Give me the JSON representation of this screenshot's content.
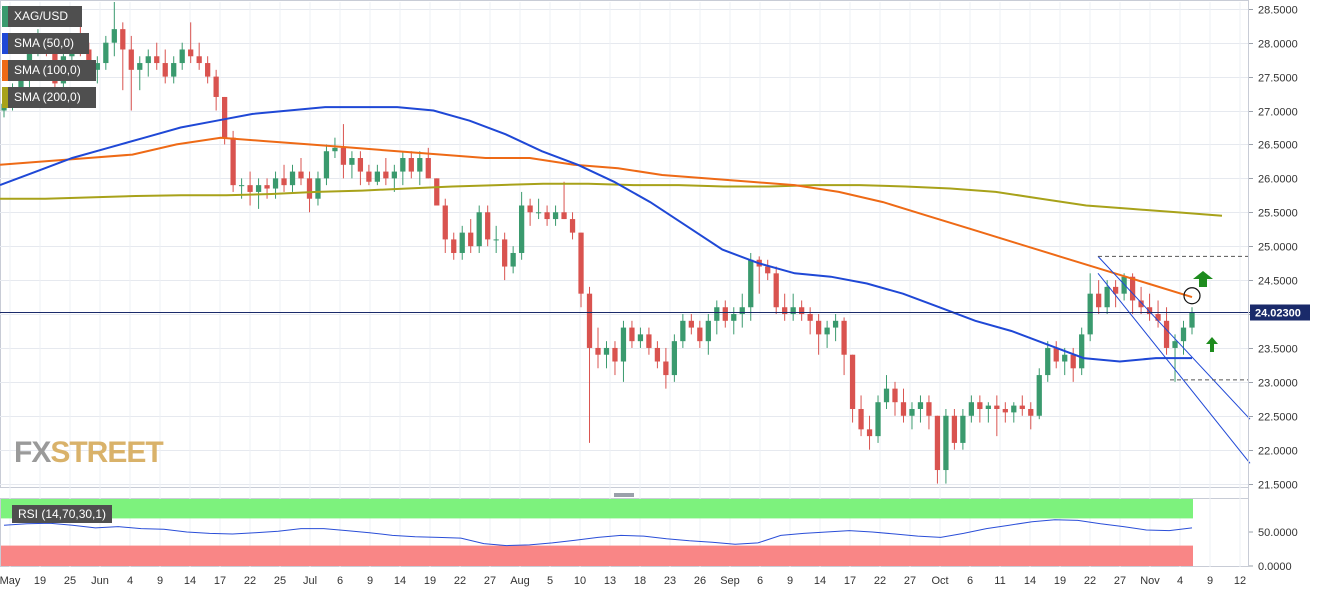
{
  "legend": {
    "symbol": "XAG/USD",
    "sma50": "SMA (50,0)",
    "sma100": "SMA (100,0)",
    "sma200": "SMA (200,0)",
    "rsi": "RSI (14,70,30,1)"
  },
  "logo": {
    "part1": "FX",
    "part2": "STREET"
  },
  "colors": {
    "up": "#3a9a6e",
    "down": "#d9534f",
    "sma50": "#1f48d6",
    "sma100": "#ee6a16",
    "sma200": "#a8a21a",
    "rsi_line": "#2a4ed8",
    "rsi_overbought": "#7df27d",
    "rsi_oversold": "#f98686",
    "current_price_tag": "#1a2a6a",
    "arrow": "#1e8c1e"
  },
  "chart_data": {
    "type": "candlestick",
    "price_axis": {
      "ticks": [
        "28.5000",
        "28.0000",
        "27.5000",
        "27.0000",
        "26.5000",
        "26.0000",
        "25.5000",
        "25.0000",
        "24.5000",
        "24.0000",
        "23.5000",
        "23.0000",
        "22.5000",
        "22.0000",
        "21.5000"
      ],
      "ylim": [
        21.45,
        28.6
      ]
    },
    "current_price": {
      "label": "24.02300",
      "value": 24.023
    },
    "x_axis": {
      "labels": [
        "May",
        "19",
        "25",
        "Jun",
        "4",
        "9",
        "14",
        "17",
        "22",
        "25",
        "Jul",
        "6",
        "9",
        "14",
        "19",
        "22",
        "27",
        "Aug",
        "5",
        "10",
        "13",
        "18",
        "23",
        "26",
        "Sep",
        "6",
        "9",
        "14",
        "17",
        "22",
        "27",
        "Oct",
        "6",
        "11",
        "14",
        "19",
        "22",
        "27",
        "Nov",
        "4",
        "9",
        "12"
      ]
    },
    "rsi_axis": {
      "ticks": [
        "50.0000",
        "0.0000"
      ]
    },
    "candles": [
      [
        27.0,
        27.2,
        26.9,
        27.1
      ],
      [
        27.1,
        27.4,
        27.0,
        27.2
      ],
      [
        27.2,
        27.6,
        27.1,
        27.5
      ],
      [
        27.5,
        28.1,
        27.3,
        27.9
      ],
      [
        27.9,
        28.2,
        27.8,
        28.0
      ],
      [
        28.0,
        28.1,
        27.8,
        27.9
      ],
      [
        27.9,
        28.0,
        27.2,
        27.4
      ],
      [
        27.4,
        28.0,
        27.3,
        27.8
      ],
      [
        27.8,
        28.1,
        27.6,
        28.0
      ],
      [
        28.0,
        28.3,
        27.8,
        27.9
      ],
      [
        27.9,
        28.0,
        27.5,
        27.6
      ],
      [
        27.6,
        27.8,
        27.4,
        27.7
      ],
      [
        27.7,
        28.1,
        27.6,
        28.0
      ],
      [
        28.0,
        28.6,
        27.8,
        28.2
      ],
      [
        28.2,
        28.3,
        27.3,
        27.9
      ],
      [
        27.9,
        28.1,
        27.0,
        27.6
      ],
      [
        27.6,
        27.8,
        27.3,
        27.7
      ],
      [
        27.7,
        27.9,
        27.5,
        27.8
      ],
      [
        27.8,
        28.0,
        27.6,
        27.7
      ],
      [
        27.7,
        27.9,
        27.4,
        27.5
      ],
      [
        27.5,
        27.8,
        27.4,
        27.7
      ],
      [
        27.7,
        28.0,
        27.6,
        27.9
      ],
      [
        27.9,
        28.3,
        27.7,
        27.8
      ],
      [
        27.8,
        28.0,
        27.6,
        27.7
      ],
      [
        27.7,
        27.8,
        27.4,
        27.5
      ],
      [
        27.5,
        27.6,
        27.0,
        27.2
      ],
      [
        27.2,
        27.2,
        26.5,
        26.6
      ],
      [
        26.6,
        26.7,
        25.8,
        25.9
      ],
      [
        25.9,
        26.0,
        25.7,
        25.9
      ],
      [
        25.9,
        26.1,
        25.6,
        25.8
      ],
      [
        25.8,
        26.0,
        25.55,
        25.9
      ],
      [
        25.9,
        26.0,
        25.7,
        25.85
      ],
      [
        25.85,
        26.1,
        25.7,
        26.0
      ],
      [
        26.0,
        26.2,
        25.8,
        25.9
      ],
      [
        25.9,
        26.2,
        25.8,
        26.1
      ],
      [
        26.1,
        26.3,
        25.9,
        26.0
      ],
      [
        26.0,
        26.1,
        25.5,
        25.7
      ],
      [
        25.7,
        26.1,
        25.6,
        26.0
      ],
      [
        26.0,
        26.5,
        25.9,
        26.4
      ],
      [
        26.4,
        26.6,
        26.3,
        26.45
      ],
      [
        26.45,
        26.8,
        26.0,
        26.2
      ],
      [
        26.2,
        26.4,
        26.0,
        26.3
      ],
      [
        26.3,
        26.4,
        25.9,
        26.1
      ],
      [
        26.1,
        26.2,
        25.9,
        25.95
      ],
      [
        25.95,
        26.2,
        25.9,
        26.1
      ],
      [
        26.1,
        26.3,
        25.9,
        26.0
      ],
      [
        26.0,
        26.2,
        25.8,
        26.1
      ],
      [
        26.1,
        26.4,
        25.9,
        26.3
      ],
      [
        26.3,
        26.4,
        26.0,
        26.1
      ],
      [
        26.1,
        26.4,
        25.9,
        26.3
      ],
      [
        26.3,
        26.45,
        26.0,
        26.0
      ],
      [
        26.0,
        26.0,
        25.6,
        25.6
      ],
      [
        25.6,
        25.7,
        24.9,
        25.1
      ],
      [
        25.1,
        25.2,
        24.8,
        24.9
      ],
      [
        24.9,
        25.3,
        24.8,
        25.2
      ],
      [
        25.2,
        25.4,
        24.9,
        25.0
      ],
      [
        25.0,
        25.6,
        24.9,
        25.5
      ],
      [
        25.5,
        25.6,
        25.0,
        25.1
      ],
      [
        25.1,
        25.3,
        24.9,
        25.1
      ],
      [
        25.1,
        25.2,
        24.5,
        24.7
      ],
      [
        24.7,
        25.0,
        24.6,
        24.9
      ],
      [
        24.9,
        25.8,
        24.8,
        25.6
      ],
      [
        25.6,
        25.7,
        25.3,
        25.5
      ],
      [
        25.5,
        25.7,
        25.4,
        25.5
      ],
      [
        25.5,
        25.6,
        25.3,
        25.4
      ],
      [
        25.4,
        25.6,
        25.3,
        25.5
      ],
      [
        25.5,
        25.95,
        25.4,
        25.4
      ],
      [
        25.4,
        25.5,
        25.1,
        25.2
      ],
      [
        25.2,
        25.2,
        24.1,
        24.3
      ],
      [
        24.3,
        24.4,
        22.1,
        23.5
      ],
      [
        23.5,
        23.8,
        23.2,
        23.4
      ],
      [
        23.4,
        23.6,
        23.2,
        23.5
      ],
      [
        23.5,
        23.6,
        23.1,
        23.3
      ],
      [
        23.3,
        23.9,
        23.0,
        23.8
      ],
      [
        23.8,
        23.9,
        23.5,
        23.6
      ],
      [
        23.6,
        23.8,
        23.5,
        23.7
      ],
      [
        23.7,
        23.8,
        23.4,
        23.5
      ],
      [
        23.5,
        23.6,
        23.2,
        23.3
      ],
      [
        23.3,
        23.5,
        22.9,
        23.1
      ],
      [
        23.1,
        23.7,
        23.0,
        23.6
      ],
      [
        23.6,
        24.0,
        23.5,
        23.9
      ],
      [
        23.9,
        24.0,
        23.7,
        23.8
      ],
      [
        23.8,
        23.9,
        23.5,
        23.6
      ],
      [
        23.6,
        24.0,
        23.4,
        23.9
      ],
      [
        23.9,
        24.2,
        23.7,
        24.1
      ],
      [
        24.1,
        24.2,
        23.8,
        23.9
      ],
      [
        23.9,
        24.1,
        23.7,
        24.0
      ],
      [
        24.0,
        24.3,
        23.8,
        24.1
      ],
      [
        24.1,
        24.9,
        23.9,
        24.8
      ],
      [
        24.8,
        24.85,
        24.3,
        24.7
      ],
      [
        24.7,
        24.8,
        24.5,
        24.6
      ],
      [
        24.6,
        24.7,
        24.0,
        24.1
      ],
      [
        24.1,
        24.3,
        23.9,
        24.0
      ],
      [
        24.0,
        24.3,
        23.9,
        24.1
      ],
      [
        24.1,
        24.2,
        23.9,
        24.0
      ],
      [
        24.0,
        24.1,
        23.7,
        23.9
      ],
      [
        23.9,
        24.0,
        23.4,
        23.7
      ],
      [
        23.7,
        23.9,
        23.5,
        23.8
      ],
      [
        23.8,
        24.0,
        23.6,
        23.9
      ],
      [
        23.9,
        23.95,
        23.1,
        23.4
      ],
      [
        23.4,
        23.4,
        22.4,
        22.6
      ],
      [
        22.6,
        22.8,
        22.2,
        22.3
      ],
      [
        22.3,
        22.5,
        22.0,
        22.2
      ],
      [
        22.2,
        22.8,
        22.1,
        22.7
      ],
      [
        22.7,
        23.1,
        22.6,
        22.9
      ],
      [
        22.9,
        23.0,
        22.5,
        22.7
      ],
      [
        22.7,
        22.9,
        22.4,
        22.5
      ],
      [
        22.5,
        22.7,
        22.3,
        22.6
      ],
      [
        22.6,
        22.8,
        22.4,
        22.7
      ],
      [
        22.7,
        22.8,
        22.3,
        22.5
      ],
      [
        22.5,
        22.5,
        21.5,
        21.7
      ],
      [
        21.7,
        22.6,
        21.5,
        22.5
      ],
      [
        22.5,
        22.6,
        22.0,
        22.1
      ],
      [
        22.1,
        22.6,
        22.0,
        22.5
      ],
      [
        22.5,
        22.8,
        22.4,
        22.7
      ],
      [
        22.7,
        22.8,
        22.4,
        22.6
      ],
      [
        22.6,
        22.7,
        22.4,
        22.65
      ],
      [
        22.65,
        22.8,
        22.2,
        22.6
      ],
      [
        22.6,
        22.7,
        22.4,
        22.55
      ],
      [
        22.55,
        22.7,
        22.4,
        22.65
      ],
      [
        22.65,
        22.8,
        22.5,
        22.6
      ],
      [
        22.6,
        22.7,
        22.3,
        22.5
      ],
      [
        22.5,
        23.2,
        22.45,
        23.1
      ],
      [
        23.1,
        23.6,
        23.0,
        23.5
      ],
      [
        23.5,
        23.6,
        23.2,
        23.3
      ],
      [
        23.3,
        23.5,
        23.1,
        23.4
      ],
      [
        23.4,
        23.5,
        23.0,
        23.2
      ],
      [
        23.2,
        23.8,
        23.1,
        23.7
      ],
      [
        23.7,
        24.6,
        23.6,
        24.3
      ],
      [
        24.3,
        24.5,
        24.0,
        24.1
      ],
      [
        24.1,
        24.5,
        24.0,
        24.4
      ],
      [
        24.4,
        24.5,
        24.1,
        24.3
      ],
      [
        24.3,
        24.6,
        24.2,
        24.55
      ],
      [
        24.55,
        24.6,
        24.0,
        24.2
      ],
      [
        24.2,
        24.4,
        24.0,
        24.1
      ],
      [
        24.1,
        24.3,
        23.9,
        24.0
      ],
      [
        24.0,
        24.2,
        23.8,
        23.9
      ],
      [
        23.9,
        24.1,
        23.4,
        23.5
      ],
      [
        23.5,
        23.7,
        23.0,
        23.6
      ],
      [
        23.6,
        23.9,
        23.4,
        23.8
      ],
      [
        23.8,
        24.1,
        23.7,
        24.023
      ]
    ],
    "sma50": [
      25.9,
      26.1,
      26.3,
      26.45,
      26.6,
      26.75,
      26.85,
      26.95,
      27.0,
      27.05,
      27.05,
      27.05,
      27.0,
      26.85,
      26.65,
      26.4,
      26.2,
      25.95,
      25.65,
      25.3,
      24.95,
      24.75,
      24.6,
      24.55,
      24.45,
      24.3,
      24.1,
      23.9,
      23.75,
      23.55,
      23.35,
      23.3,
      23.35,
      23.35
    ],
    "sma100": [
      26.2,
      26.25,
      26.3,
      26.35,
      26.5,
      26.6,
      26.55,
      26.5,
      26.45,
      26.4,
      26.35,
      26.3,
      26.3,
      26.2,
      26.15,
      26.05,
      26.0,
      25.95,
      25.9,
      25.8,
      25.65,
      25.45,
      25.25,
      25.05,
      24.85,
      24.65,
      24.45,
      24.25
    ],
    "sma200": [
      25.7,
      25.7,
      25.72,
      25.74,
      25.75,
      25.75,
      25.77,
      25.8,
      25.82,
      25.85,
      25.88,
      25.9,
      25.92,
      25.92,
      25.9,
      25.9,
      25.88,
      25.88,
      25.9,
      25.9,
      25.88,
      25.85,
      25.8,
      25.7,
      25.6,
      25.55,
      25.5,
      25.45
    ],
    "rsi": [
      60,
      62,
      63,
      60,
      56,
      58,
      55,
      54,
      50,
      48,
      47,
      49,
      51,
      55,
      55,
      52,
      49,
      45,
      43,
      42,
      41,
      33,
      30,
      31,
      34,
      38,
      42,
      45,
      44,
      40,
      37,
      35,
      32,
      34,
      45,
      48,
      50,
      52,
      50,
      47,
      44,
      42,
      48,
      55,
      60,
      65,
      68,
      67,
      62,
      58,
      53,
      52,
      56
    ]
  }
}
